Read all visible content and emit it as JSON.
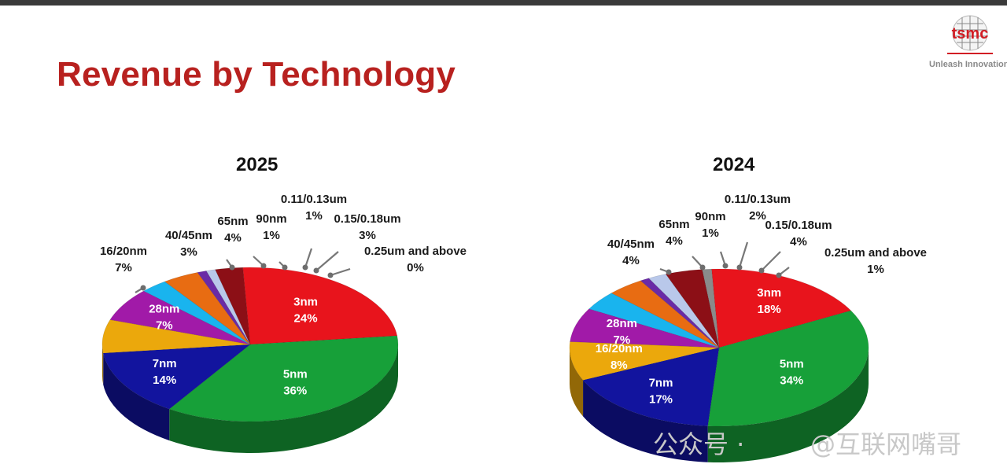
{
  "title": "Revenue by Technology",
  "brand": {
    "logo_text": "tsmc",
    "tagline": "Unleash Innovation"
  },
  "watermark": {
    "left": "公众号 ·",
    "right": "@互联网嘴哥"
  },
  "chart_data": [
    {
      "type": "pie",
      "title": "2025",
      "slices": [
        {
          "label": "3nm",
          "value": 24,
          "pct": "24%",
          "color": "#e8141c"
        },
        {
          "label": "5nm",
          "value": 36,
          "pct": "36%",
          "color": "#17a039"
        },
        {
          "label": "7nm",
          "value": 14,
          "pct": "14%",
          "color": "#12149e"
        },
        {
          "label": "16/20nm",
          "value": 7,
          "pct": "7%",
          "color": "#eba80c"
        },
        {
          "label": "28nm",
          "value": 7,
          "pct": "7%",
          "color": "#a11aa8"
        },
        {
          "label": "40/45nm",
          "value": 3,
          "pct": "3%",
          "color": "#19b4ee"
        },
        {
          "label": "65nm",
          "value": 4,
          "pct": "4%",
          "color": "#e86c12"
        },
        {
          "label": "90nm",
          "value": 1,
          "pct": "1%",
          "color": "#6a2aa6"
        },
        {
          "label": "0.11/0.13um",
          "value": 1,
          "pct": "1%",
          "color": "#b9c8ea"
        },
        {
          "label": "0.15/0.18um",
          "value": 3,
          "pct": "3%",
          "color": "#8c0f16"
        },
        {
          "label": "0.25um and above",
          "value": 0,
          "pct": "0%",
          "color": "#8a8a8a"
        }
      ]
    },
    {
      "type": "pie",
      "title": "2024",
      "slices": [
        {
          "label": "3nm",
          "value": 18,
          "pct": "18%",
          "color": "#e8141c"
        },
        {
          "label": "5nm",
          "value": 34,
          "pct": "34%",
          "color": "#17a039"
        },
        {
          "label": "7nm",
          "value": 17,
          "pct": "17%",
          "color": "#12149e"
        },
        {
          "label": "16/20nm",
          "value": 8,
          "pct": "8%",
          "color": "#eba80c"
        },
        {
          "label": "28nm",
          "value": 7,
          "pct": "7%",
          "color": "#a11aa8"
        },
        {
          "label": "40/45nm",
          "value": 4,
          "pct": "4%",
          "color": "#19b4ee"
        },
        {
          "label": "65nm",
          "value": 4,
          "pct": "4%",
          "color": "#e86c12"
        },
        {
          "label": "90nm",
          "value": 1,
          "pct": "1%",
          "color": "#6a2aa6"
        },
        {
          "label": "0.11/0.13um",
          "value": 2,
          "pct": "2%",
          "color": "#b9c8ea"
        },
        {
          "label": "0.15/0.18um",
          "value": 4,
          "pct": "4%",
          "color": "#8c0f16"
        },
        {
          "label": "0.25um and above",
          "value": 1,
          "pct": "1%",
          "color": "#8a8a8a"
        }
      ]
    }
  ]
}
